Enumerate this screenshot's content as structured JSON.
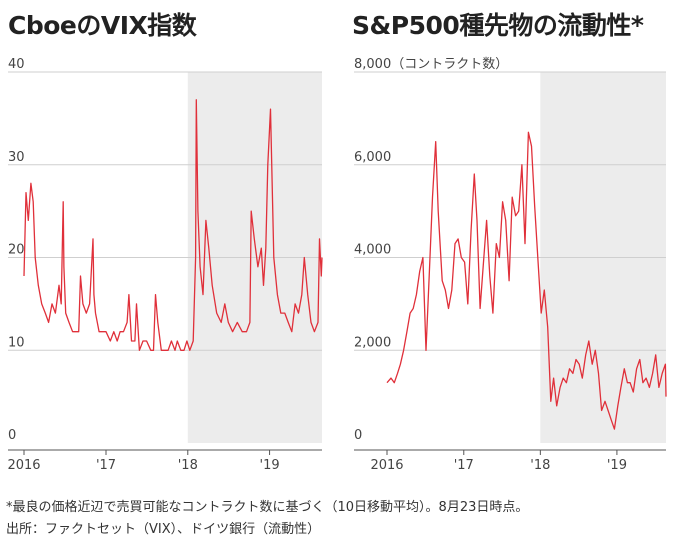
{
  "chart_data": [
    {
      "type": "line",
      "title": "CboeのVIX指数",
      "xlabel": "",
      "ylabel": "",
      "x_ticks": [
        "2016",
        "'17",
        "'18",
        "'19"
      ],
      "y_ticks": [
        "40",
        "30",
        "20",
        "10",
        "0"
      ],
      "ylim": [
        0,
        40
      ],
      "xlim": [
        "2016-01-01",
        "2019-08-23"
      ],
      "shaded_region": [
        "2018-01-01",
        "2019-08-23"
      ],
      "grid": "horizontal",
      "line_color": "#e0303a",
      "shade_color": "#ececec",
      "series": [
        {
          "x": [
            "2016-01-01",
            "2016-01-10",
            "2016-01-20",
            "2016-02-01",
            "2016-02-11",
            "2016-02-20",
            "2016-03-05",
            "2016-03-20",
            "2016-04-05",
            "2016-04-20",
            "2016-05-05",
            "2016-05-20",
            "2016-06-05",
            "2016-06-15",
            "2016-06-24",
            "2016-06-27",
            "2016-07-05",
            "2016-07-20",
            "2016-08-05",
            "2016-08-20",
            "2016-09-01",
            "2016-09-09",
            "2016-09-20",
            "2016-10-05",
            "2016-10-20",
            "2016-11-04",
            "2016-11-08",
            "2016-11-15",
            "2016-12-01",
            "2016-12-15",
            "2017-01-01",
            "2017-01-20",
            "2017-02-05",
            "2017-02-20",
            "2017-03-05",
            "2017-03-20",
            "2017-04-05",
            "2017-04-13",
            "2017-04-25",
            "2017-05-10",
            "2017-05-17",
            "2017-05-30",
            "2017-06-15",
            "2017-07-01",
            "2017-07-20",
            "2017-08-01",
            "2017-08-10",
            "2017-08-20",
            "2017-09-05",
            "2017-09-20",
            "2017-10-05",
            "2017-10-20",
            "2017-11-05",
            "2017-11-15",
            "2017-12-01",
            "2017-12-15",
            "2017-12-28",
            "2018-01-10",
            "2018-01-25",
            "2018-02-05",
            "2018-02-08",
            "2018-02-15",
            "2018-02-25",
            "2018-03-10",
            "2018-03-23",
            "2018-04-05",
            "2018-04-20",
            "2018-05-10",
            "2018-05-30",
            "2018-06-15",
            "2018-07-01",
            "2018-07-20",
            "2018-08-10",
            "2018-09-01",
            "2018-09-20",
            "2018-10-05",
            "2018-10-11",
            "2018-10-25",
            "2018-11-10",
            "2018-11-25",
            "2018-12-05",
            "2018-12-15",
            "2018-12-24",
            "2019-01-05",
            "2019-01-20",
            "2019-02-05",
            "2019-02-20",
            "2019-03-10",
            "2019-03-25",
            "2019-04-10",
            "2019-04-25",
            "2019-05-10",
            "2019-05-25",
            "2019-06-05",
            "2019-06-20",
            "2019-07-05",
            "2019-07-20",
            "2019-08-05",
            "2019-08-12",
            "2019-08-20",
            "2019-08-23"
          ],
          "y": [
            18,
            27,
            24,
            28,
            26,
            20,
            17,
            15,
            14,
            13,
            15,
            14,
            17,
            15,
            26,
            19,
            14,
            13,
            12,
            12,
            12,
            18,
            15,
            14,
            15,
            22,
            16,
            14,
            12,
            12,
            12,
            11,
            12,
            11,
            12,
            12,
            13,
            16,
            11,
            11,
            15,
            10,
            11,
            11,
            10,
            10,
            16,
            13,
            10,
            10,
            10,
            11,
            10,
            11,
            10,
            10,
            11,
            10,
            11,
            20,
            37,
            25,
            19,
            16,
            24,
            21,
            17,
            14,
            13,
            15,
            13,
            12,
            13,
            12,
            12,
            13,
            25,
            22,
            19,
            21,
            17,
            21,
            30,
            36,
            20,
            16,
            14,
            14,
            13,
            12,
            15,
            14,
            16,
            20,
            16,
            13,
            12,
            13,
            22,
            18,
            20
          ]
        }
      ]
    },
    {
      "type": "line",
      "title": "S&P500種先物の流動性*",
      "ylabel": "8,000（コントラクト数）",
      "xlabel": "",
      "x_ticks": [
        "2016",
        "'17",
        "'18",
        "'19"
      ],
      "y_ticks": [
        "8,000",
        "6,000",
        "4,000",
        "2,000",
        "0"
      ],
      "ylim": [
        0,
        8000
      ],
      "xlim": [
        "2016-01-01",
        "2019-08-23"
      ],
      "shaded_region": [
        "2018-01-01",
        "2019-08-23"
      ],
      "grid": "horizontal",
      "line_color": "#e0303a",
      "shade_color": "#ececec",
      "series": [
        {
          "x": [
            "2016-01-01",
            "2016-01-20",
            "2016-02-05",
            "2016-02-20",
            "2016-03-05",
            "2016-03-20",
            "2016-04-05",
            "2016-04-20",
            "2016-05-05",
            "2016-05-20",
            "2016-06-05",
            "2016-06-20",
            "2016-07-05",
            "2016-07-20",
            "2016-08-05",
            "2016-08-20",
            "2016-09-01",
            "2016-09-20",
            "2016-10-05",
            "2016-10-20",
            "2016-11-05",
            "2016-11-20",
            "2016-12-05",
            "2016-12-20",
            "2017-01-05",
            "2017-01-20",
            "2017-02-05",
            "2017-02-20",
            "2017-03-05",
            "2017-03-20",
            "2017-04-05",
            "2017-04-20",
            "2017-05-05",
            "2017-05-20",
            "2017-06-05",
            "2017-06-20",
            "2017-07-05",
            "2017-07-20",
            "2017-08-05",
            "2017-08-20",
            "2017-09-05",
            "2017-09-20",
            "2017-10-05",
            "2017-10-20",
            "2017-11-05",
            "2017-11-20",
            "2017-12-05",
            "2017-12-20",
            "2018-01-05",
            "2018-01-20",
            "2018-02-05",
            "2018-02-20",
            "2018-03-05",
            "2018-03-20",
            "2018-04-05",
            "2018-04-20",
            "2018-05-05",
            "2018-05-20",
            "2018-06-05",
            "2018-06-20",
            "2018-07-05",
            "2018-07-20",
            "2018-08-05",
            "2018-08-20",
            "2018-09-05",
            "2018-09-20",
            "2018-10-05",
            "2018-10-20",
            "2018-11-05",
            "2018-11-20",
            "2018-12-05",
            "2018-12-20",
            "2019-01-05",
            "2019-01-20",
            "2019-02-05",
            "2019-02-20",
            "2019-03-05",
            "2019-03-20",
            "2019-04-05",
            "2019-04-20",
            "2019-05-05",
            "2019-05-20",
            "2019-06-05",
            "2019-06-20",
            "2019-07-05",
            "2019-07-20",
            "2019-08-05",
            "2019-08-20",
            "2019-08-23"
          ],
          "y": [
            1300,
            1400,
            1300,
            1500,
            1700,
            2000,
            2400,
            2800,
            2900,
            3200,
            3700,
            4000,
            2000,
            3600,
            5300,
            6500,
            5000,
            3500,
            3300,
            2900,
            3300,
            4300,
            4400,
            4000,
            3900,
            3000,
            4600,
            5800,
            4800,
            2900,
            3900,
            4800,
            3600,
            2800,
            4300,
            4000,
            5200,
            4800,
            3500,
            5300,
            4900,
            5000,
            6000,
            4300,
            6700,
            6400,
            5100,
            4000,
            2800,
            3300,
            2500,
            900,
            1400,
            800,
            1200,
            1400,
            1300,
            1600,
            1500,
            1800,
            1700,
            1400,
            1900,
            2200,
            1700,
            2000,
            1500,
            700,
            900,
            700,
            500,
            300,
            800,
            1200,
            1600,
            1300,
            1300,
            1100,
            1600,
            1800,
            1300,
            1400,
            1200,
            1500,
            1900,
            1200,
            1500,
            1700,
            1000
          ]
        }
      ]
    }
  ],
  "notes": {
    "footnote": "*最良の価格近辺で売買可能なコントラクト数に基づく（10日移動平均）。8月23日時点。",
    "source": "出所：ファクトセット（VIX）、ドイツ銀行（流動性）"
  }
}
